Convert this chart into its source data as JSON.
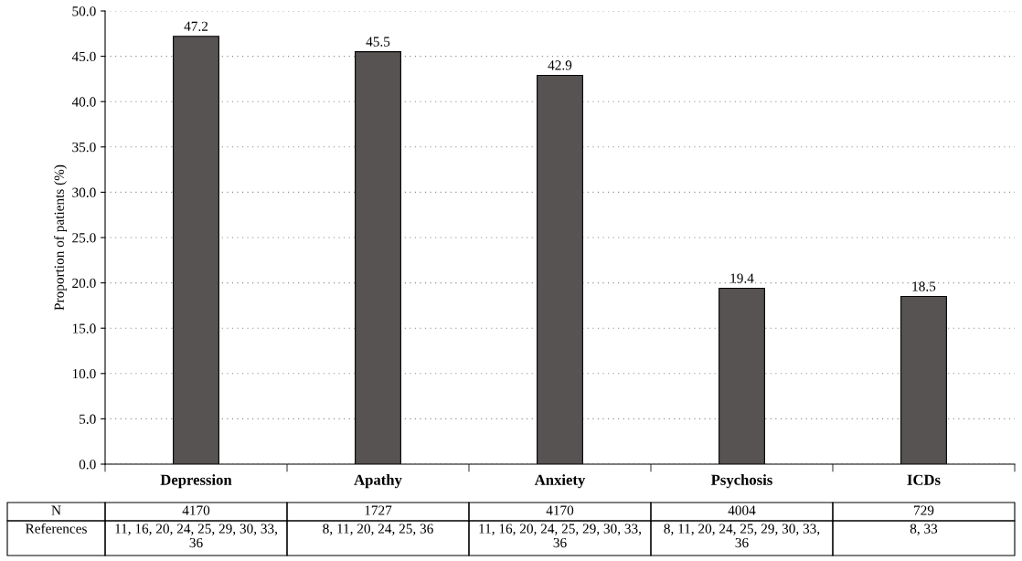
{
  "chart_data": {
    "type": "bar",
    "ylabel": "Proportion of patients (%)",
    "categories": [
      "Depression",
      "Apathy",
      "Anxiety",
      "Psychosis",
      "ICDs"
    ],
    "values": [
      47.2,
      45.5,
      42.9,
      19.4,
      18.5
    ],
    "color": "#575353",
    "ylim": [
      0,
      50
    ],
    "yticks": [
      {
        "value": 0,
        "label": "0.0"
      },
      {
        "value": 5,
        "label": "5.0"
      },
      {
        "value": 10,
        "label": "10.0"
      },
      {
        "value": 15,
        "label": "15.0"
      },
      {
        "value": 20,
        "label": "20.0"
      },
      {
        "value": 25,
        "label": "25.0"
      },
      {
        "value": 30,
        "label": "30.0"
      },
      {
        "value": 35,
        "label": "35.0"
      },
      {
        "value": 40,
        "label": "40.0"
      },
      {
        "value": 45,
        "label": "45.0"
      },
      {
        "value": 50,
        "label": "50.0"
      }
    ],
    "grid": "y",
    "data_labels": true,
    "annotations": [
      "N",
      "4170",
      "1727",
      "4170",
      "4004",
      "729",
      "References",
      "11, 16, 20, 24, 25, 29, 30, 33, 36",
      "8, 11, 20, 24, 25, 36",
      "11, 16, 20, 24, 25, 29, 30, 33, 36",
      "8, 11, 20, 24, 25, 29, 30, 33, 36",
      "8, 33"
    ]
  }
}
